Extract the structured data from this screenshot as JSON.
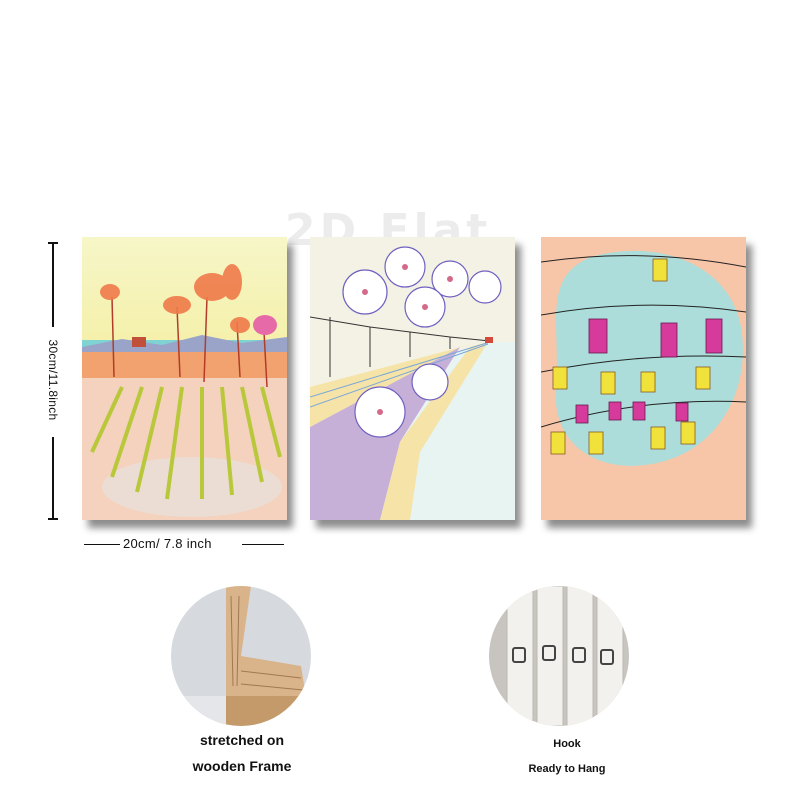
{
  "watermark": "2D Flat",
  "dimensions": {
    "height_label": "30cm/11.8inch",
    "width_label": "20cm/ 7.8 inch"
  },
  "paintings": [
    {
      "name": "flower-field-painting",
      "colors": {
        "sky": "#f5f1b0",
        "ground": "#f4d2bd",
        "stripe": "#b8c83a"
      }
    },
    {
      "name": "hibiscus-road-painting",
      "colors": {
        "sky": "#f4f2e4",
        "road": "#f5e3a8",
        "field": "#c6b0d8"
      }
    },
    {
      "name": "lanterns-painting",
      "colors": {
        "bg": "#f7c6a8",
        "splash": "#9fe0e3",
        "lantern_pink": "#d63a9a",
        "lantern_yellow": "#f0e23a"
      }
    }
  ],
  "details": {
    "frame": {
      "line1": "stretched on",
      "line2": "wooden Frame"
    },
    "hook": {
      "line1": "Hook",
      "line2": "Ready to Hang"
    }
  }
}
